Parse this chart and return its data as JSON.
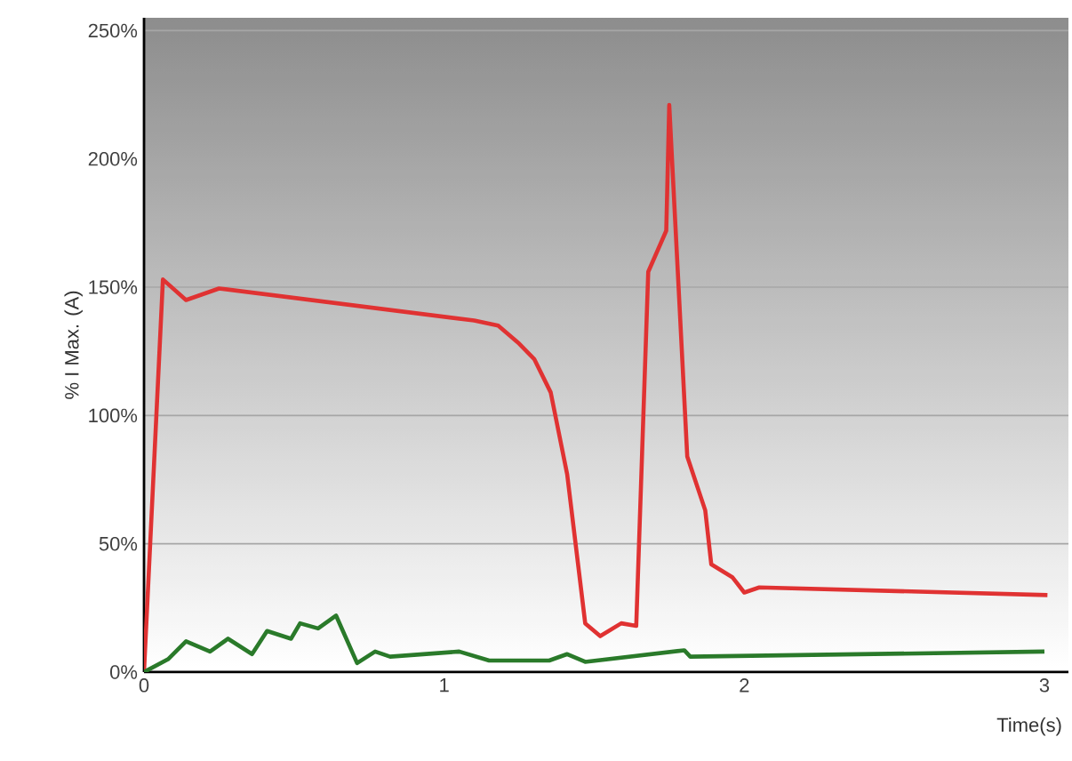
{
  "chart_data": {
    "type": "line",
    "xlabel": "Time(s)",
    "ylabel": "% I Max. (A)",
    "xlim": [
      0,
      3.08
    ],
    "ylim": [
      0,
      255
    ],
    "xticks": [
      0,
      1,
      2,
      3
    ],
    "yticks": [
      {
        "value": 0,
        "label": "0%"
      },
      {
        "value": 50,
        "label": "50%"
      },
      {
        "value": 100,
        "label": "100%"
      },
      {
        "value": 150,
        "label": "150%"
      },
      {
        "value": 200,
        "label": "200%"
      },
      {
        "value": 250,
        "label": "250%"
      }
    ],
    "grid": "y",
    "series": [
      {
        "color": "#e03232",
        "x": [
          0,
          0.063,
          0.14,
          0.25,
          1.1,
          1.18,
          1.25,
          1.3,
          1.355,
          1.41,
          1.47,
          1.52,
          1.59,
          1.64,
          1.68,
          1.74,
          1.75,
          1.81,
          1.87,
          1.89,
          1.96,
          2.0,
          2.05,
          3.01
        ],
        "values": [
          0,
          153,
          145,
          149.5,
          137,
          135,
          128,
          122,
          109,
          77,
          19,
          14,
          19,
          18,
          156,
          172,
          221,
          84,
          63,
          42,
          37,
          31,
          33,
          30
        ]
      },
      {
        "color": "#2a7a2a",
        "x": [
          0,
          0.08,
          0.14,
          0.22,
          0.28,
          0.36,
          0.41,
          0.49,
          0.52,
          0.58,
          0.64,
          0.71,
          0.77,
          0.82,
          1.05,
          1.15,
          1.35,
          1.41,
          1.47,
          1.8,
          1.82,
          3.0
        ],
        "values": [
          0,
          5,
          12,
          8,
          13,
          7,
          16,
          13,
          19,
          17,
          22,
          3.5,
          8,
          6,
          8,
          4.5,
          4.5,
          7,
          4,
          8.5,
          6,
          8
        ]
      }
    ]
  }
}
